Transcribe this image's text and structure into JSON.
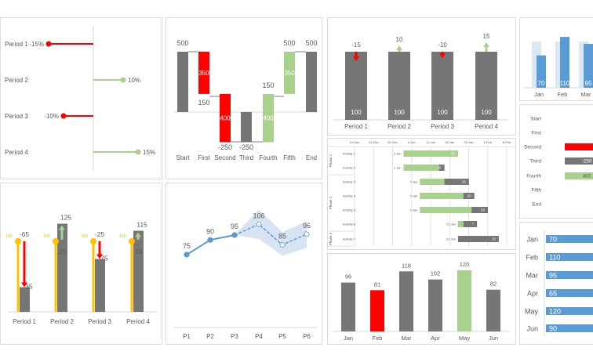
{
  "colors": {
    "gray": "#767676",
    "red": "#ff0000",
    "green": "#a9d18e",
    "blue": "#5b9bd5",
    "lightblue": "#dae7f5",
    "orange": "#ffc000",
    "band": "#d6e4f3"
  },
  "chart_data": [
    {
      "id": "variance-lollipop",
      "type": "bar",
      "orientation": "horizontal",
      "categories": [
        "Period 1",
        "Period 2",
        "Period 3",
        "Period 4"
      ],
      "values": [
        -15,
        10,
        -10,
        15
      ],
      "labels": [
        "-15%",
        "10%",
        "-10%",
        "15%"
      ]
    },
    {
      "id": "waterfall",
      "type": "bar",
      "subtype": "waterfall",
      "categories": [
        "Start",
        "First",
        "Second",
        "Third",
        "Fourth",
        "Fifth",
        "End"
      ],
      "values": [
        500,
        -350,
        -400,
        -250,
        400,
        350,
        500
      ],
      "bar_labels": [
        "500",
        "150",
        "-250",
        "-250",
        "150",
        "500",
        "500"
      ],
      "inner_labels": [
        "",
        "350",
        "400",
        "",
        "400",
        "350",
        ""
      ]
    },
    {
      "id": "period-change-bars",
      "type": "bar",
      "categories": [
        "Period 1",
        "Period 2",
        "Period 3",
        "Period 4"
      ],
      "values": [
        100,
        100,
        100,
        100
      ],
      "changes": [
        -15,
        10,
        -10,
        15
      ],
      "change_labels": [
        "-15",
        "10",
        "-10",
        "15"
      ],
      "value_labels": [
        "100",
        "100",
        "100",
        "100"
      ]
    },
    {
      "id": "top-right-target-bars",
      "type": "bar",
      "categories": [
        "Jan",
        "Feb",
        "Mar"
      ],
      "values": [
        70,
        110,
        95
      ],
      "targets": [
        100,
        100,
        100
      ],
      "labels": [
        "70",
        "110",
        "95"
      ]
    },
    {
      "id": "gantt",
      "type": "bar",
      "subtype": "gantt",
      "x_ticks": [
        "14-Dec",
        "21-Dec",
        "28-Dec",
        "4-Jan",
        "11-Jan",
        "18-Jan",
        "25-Jan",
        "1-Feb",
        "8-Feb"
      ],
      "phases": [
        {
          "name": "Phase 1",
          "activities": 2
        },
        {
          "name": "Phase 2",
          "activities": 4
        },
        {
          "name": "Phase 3",
          "activities": 1
        }
      ],
      "tasks": [
        {
          "name": "Activity 1",
          "start": "1-Jan",
          "duration": 20,
          "complete": 20,
          "label": "20"
        },
        {
          "name": "Activity 2",
          "start": "1-Jan",
          "duration": 15,
          "complete": 13,
          "label": "15"
        },
        {
          "name": "Activity 3",
          "start": "7-Jan",
          "duration": 18,
          "complete": 9,
          "label": "18"
        },
        {
          "name": "Activity 4",
          "start": "7-Jan",
          "duration": 20,
          "complete": 16,
          "label": "20"
        },
        {
          "name": "Activity 5",
          "start": "7-Jan",
          "duration": 25,
          "complete": 19,
          "label": "25"
        },
        {
          "name": "Activity 6",
          "start": "21-Jan",
          "duration": 7,
          "complete": 2,
          "label": "7"
        },
        {
          "name": "Activity 7",
          "start": "21-Jan",
          "duration": 15,
          "complete": 0,
          "label": "15"
        }
      ]
    },
    {
      "id": "waterfall-table",
      "type": "bar",
      "orientation": "horizontal",
      "categories": [
        "Start",
        "First",
        "Second",
        "Third",
        "Fourth",
        "Fifth",
        "End"
      ],
      "values": [
        null,
        null,
        -400,
        -250,
        400,
        null,
        null
      ],
      "labels": [
        "",
        "",
        "",
        "-250",
        "400",
        "",
        ""
      ]
    },
    {
      "id": "variance-arrows",
      "type": "bar",
      "categories": [
        "Period 1",
        "Period 2",
        "Period 3",
        "Period 4"
      ],
      "baseline": [
        100,
        100,
        100,
        100
      ],
      "baseline_labels": [
        "100",
        "100",
        "100",
        "100"
      ],
      "values": [
        35,
        125,
        75,
        115
      ],
      "value_labels": [
        "35",
        "125",
        "75",
        "115"
      ],
      "changes": [
        -65,
        25,
        -25,
        15
      ],
      "change_labels": [
        "-65",
        "25",
        "-25",
        "15"
      ]
    },
    {
      "id": "forecast-line",
      "type": "line",
      "categories": [
        "P1",
        "P2",
        "P3",
        "P4",
        "P5",
        "P6"
      ],
      "values": [
        75,
        90,
        95,
        106,
        85,
        96
      ],
      "forecast_from": "P3",
      "band_low": [
        null,
        null,
        95,
        91,
        74,
        82
      ],
      "band_high": [
        null,
        null,
        95,
        121,
        98,
        109
      ]
    },
    {
      "id": "highlight-bars",
      "type": "bar",
      "categories": [
        "Jan",
        "Feb",
        "Mar",
        "Apr",
        "May",
        "Jun"
      ],
      "values": [
        96,
        81,
        118,
        102,
        120,
        82
      ],
      "highlight": {
        "min": "Feb",
        "max": "May"
      }
    },
    {
      "id": "horizontal-bars",
      "type": "bar",
      "orientation": "horizontal",
      "categories": [
        "Jan",
        "Feb",
        "Mar",
        "Apr",
        "May",
        "Jun"
      ],
      "values": [
        70,
        110,
        95,
        65,
        120,
        90
      ]
    }
  ]
}
